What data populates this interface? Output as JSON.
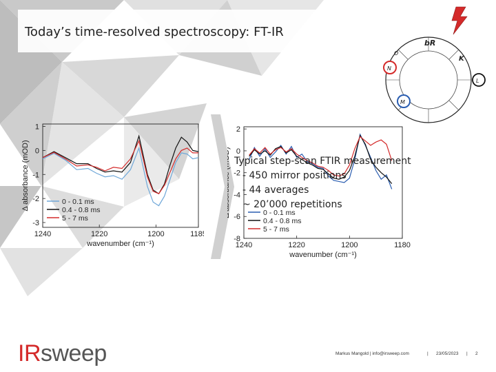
{
  "slide": {
    "title": "Today’s time-resolved spectroscopy: FT-IR",
    "bullets": [
      "Typical step-scan FTIR measurement",
      "- 450 mirror positions",
      "- 44 averages",
      "~ 20’000 repetitions"
    ],
    "footer_author": "Markus Mangold | info@irsweep.com",
    "footer_sep": "|",
    "footer_date": "23/05/2023",
    "footer_page": "2",
    "logo_ir": "IR",
    "logo_rest": "sweep",
    "wheel_labels": [
      "bR",
      "K",
      "L",
      "M",
      "N",
      "O"
    ]
  },
  "colors": {
    "accent": "#d42a2a",
    "blue": "#2a5db0",
    "black": "#111111",
    "red": "#d42a2a"
  },
  "chart_data": [
    {
      "type": "line",
      "xlabel": "wavenumber (cm⁻¹)",
      "ylabel": "Δ absorbance (mOD)",
      "xlim": [
        1240,
        1185
      ],
      "ylim": [
        -3.2,
        1.1
      ],
      "xticks": [
        "1240",
        "1220",
        "1200",
        "1185"
      ],
      "yticks": [
        "1",
        "0",
        "-1",
        "-2",
        "-3"
      ],
      "legend_position": "bottom-left",
      "series": [
        {
          "name": "0 - 0.1 ms",
          "color": "#6ea7d8",
          "x": [
            1240,
            1236,
            1232,
            1228,
            1224,
            1221,
            1218,
            1215,
            1212,
            1209,
            1206,
            1203,
            1201,
            1199,
            1197,
            1195,
            1193,
            1191,
            1189,
            1187,
            1185
          ],
          "y": [
            -0.35,
            -0.12,
            -0.4,
            -0.8,
            -0.75,
            -0.95,
            -1.1,
            -1.05,
            -1.2,
            -0.8,
            0.1,
            -1.5,
            -2.15,
            -2.3,
            -1.9,
            -1.2,
            -0.5,
            -0.1,
            -0.15,
            -0.35,
            -0.3
          ]
        },
        {
          "name": "0.4 - 0.8 ms",
          "color": "#111111",
          "x": [
            1240,
            1236,
            1232,
            1228,
            1224,
            1221,
            1218,
            1215,
            1212,
            1209,
            1206,
            1203,
            1201,
            1199,
            1197,
            1195,
            1193,
            1191,
            1189,
            1187,
            1185
          ],
          "y": [
            -0.3,
            -0.05,
            -0.3,
            -0.55,
            -0.55,
            -0.75,
            -0.9,
            -0.85,
            -0.9,
            -0.5,
            0.6,
            -1.0,
            -1.65,
            -1.8,
            -1.4,
            -0.6,
            0.1,
            0.55,
            0.35,
            0.0,
            -0.05
          ]
        },
        {
          "name": "5 - 7 ms",
          "color": "#d42a2a",
          "x": [
            1240,
            1236,
            1232,
            1228,
            1224,
            1221,
            1218,
            1215,
            1212,
            1209,
            1206,
            1203,
            1201,
            1199,
            1197,
            1195,
            1193,
            1191,
            1189,
            1187,
            1185
          ],
          "y": [
            -0.3,
            -0.08,
            -0.35,
            -0.65,
            -0.6,
            -0.7,
            -0.85,
            -0.7,
            -0.75,
            -0.35,
            0.4,
            -1.1,
            -1.7,
            -1.8,
            -1.45,
            -0.9,
            -0.35,
            0.0,
            0.1,
            -0.1,
            -0.1
          ]
        }
      ]
    },
    {
      "type": "line",
      "xlabel": "wavenumber (cm⁻¹)",
      "ylabel": "Δ absorbance (mOD)",
      "xlim": [
        1240,
        1180
      ],
      "ylim": [
        -8,
        2.2
      ],
      "xticks": [
        "1240",
        "1220",
        "1200",
        "1180"
      ],
      "yticks": [
        "2",
        "0",
        "-2",
        "-4",
        "-6",
        "-8"
      ],
      "legend_position": "bottom-left",
      "series": [
        {
          "name": "0 - 0.1 ms",
          "color": "#2a5db0",
          "x": [
            1238,
            1236,
            1234,
            1232,
            1230,
            1228,
            1226,
            1224,
            1222,
            1220,
            1218,
            1216,
            1214,
            1212,
            1210,
            1208,
            1206,
            1204,
            1202,
            1200,
            1198,
            1196,
            1194,
            1192,
            1190,
            1188,
            1186,
            1184
          ],
          "y": [
            -0.8,
            0.3,
            -0.5,
            0.2,
            -0.6,
            -0.1,
            0.5,
            -0.3,
            0.4,
            -0.6,
            -0.3,
            -1.0,
            -1.2,
            -1.5,
            -1.6,
            -2.3,
            -2.7,
            -2.8,
            -2.9,
            -2.5,
            -0.8,
            1.5,
            0.5,
            -0.6,
            -1.8,
            -2.6,
            -2.2,
            -3.5
          ]
        },
        {
          "name": "0.4 - 0.8 ms",
          "color": "#111111",
          "x": [
            1238,
            1236,
            1234,
            1232,
            1230,
            1228,
            1226,
            1224,
            1222,
            1220,
            1218,
            1216,
            1214,
            1212,
            1210,
            1208,
            1206,
            1204,
            1202,
            1200,
            1198,
            1196,
            1194,
            1192,
            1190,
            1188,
            1186,
            1184
          ],
          "y": [
            -0.5,
            0.1,
            -0.3,
            0.0,
            -0.4,
            0.2,
            0.4,
            -0.2,
            0.1,
            -0.5,
            -0.8,
            -1.1,
            -1.3,
            -1.6,
            -1.7,
            -2.1,
            -2.5,
            -2.6,
            -2.4,
            -1.8,
            -0.5,
            1.4,
            0.6,
            -0.8,
            -1.5,
            -2.0,
            -2.4,
            -3.0
          ]
        },
        {
          "name": "5 - 7 ms",
          "color": "#d42a2a",
          "x": [
            1238,
            1236,
            1234,
            1232,
            1230,
            1228,
            1226,
            1224,
            1222,
            1220,
            1218,
            1216,
            1214,
            1212,
            1210,
            1208,
            1206,
            1204,
            1202,
            1200,
            1198,
            1196,
            1194,
            1192,
            1190,
            1188,
            1186,
            1184
          ],
          "y": [
            -0.4,
            0.2,
            -0.2,
            0.3,
            -0.3,
            0.1,
            0.3,
            -0.1,
            0.2,
            -0.3,
            -0.6,
            -0.9,
            -1.1,
            -1.4,
            -1.5,
            -1.8,
            -2.2,
            -2.3,
            -2.1,
            -1.3,
            0.2,
            1.3,
            0.9,
            0.5,
            0.8,
            1.0,
            0.6,
            -0.9
          ]
        }
      ]
    }
  ]
}
